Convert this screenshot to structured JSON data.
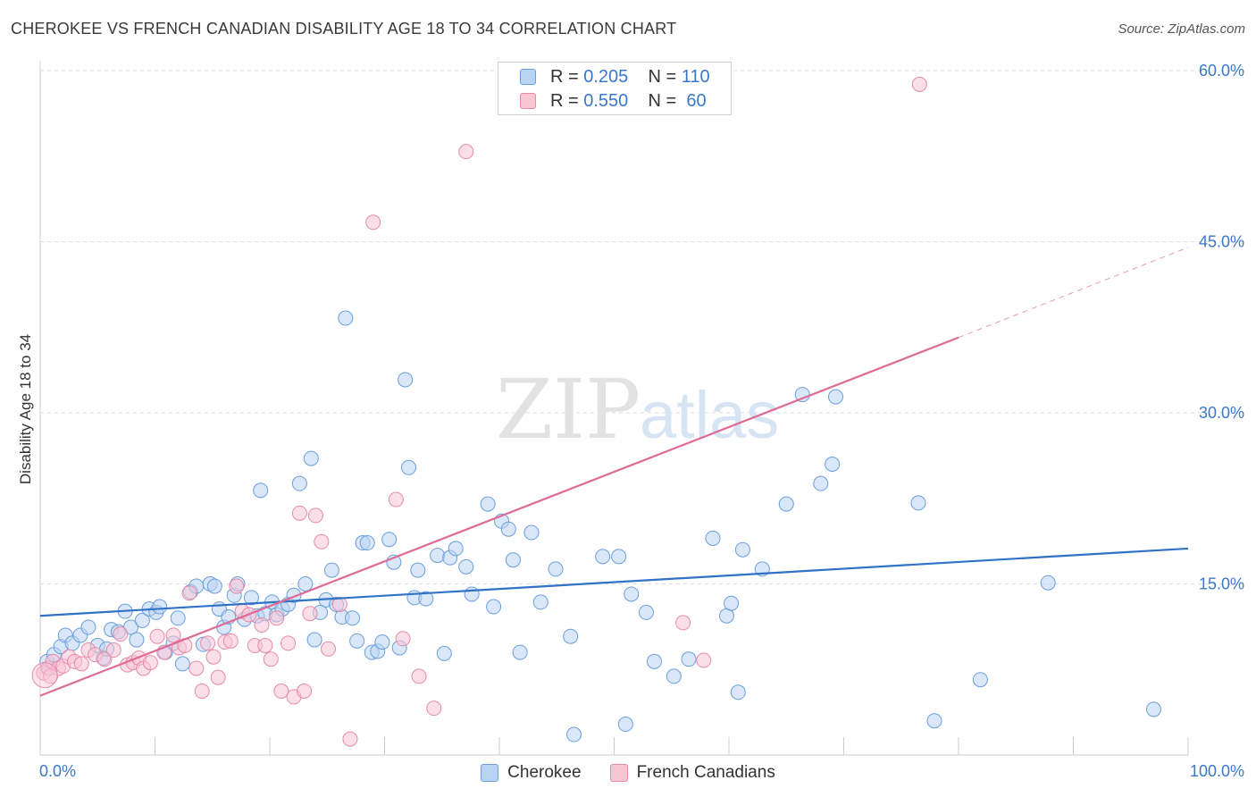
{
  "header": {
    "title": "CHEROKEE VS FRENCH CANADIAN DISABILITY AGE 18 TO 34 CORRELATION CHART",
    "source": "Source: ZipAtlas.com"
  },
  "legend": {
    "rows": [
      {
        "r_label": "R =",
        "r_value": "0.205",
        "n_label": "N =",
        "n_value": "110"
      },
      {
        "r_label": "R =",
        "r_value": "0.550",
        "n_label": "N =",
        "n_value": "60"
      }
    ]
  },
  "bottom_legend": [
    "Cherokee",
    "French Canadians"
  ],
  "colors": {
    "cherokee_fill": "#b9d3f3",
    "cherokee_stroke": "#6a9fdc",
    "cherokee_line": "#2f72c8",
    "french_fill": "#f8c5d5",
    "french_stroke": "#e68aa8",
    "french_line": "#e06a96",
    "axis_text": "#3a78c9",
    "grid": "#dddddd"
  },
  "chart_data": {
    "type": "scatter",
    "title": "CHEROKEE VS FRENCH CANADIAN DISABILITY AGE 18 TO 34 CORRELATION CHART",
    "xlabel": "",
    "ylabel": "Disability Age 18 to 34",
    "xlim": [
      0,
      100
    ],
    "ylim": [
      0,
      60
    ],
    "x_tick_labels": [
      "0.0%",
      "100.0%"
    ],
    "y_ticks": [
      15,
      30,
      45,
      60
    ],
    "y_tick_labels": [
      "15.0%",
      "30.0%",
      "45.0%",
      "60.0%"
    ],
    "watermark": "ZIPatlas",
    "grid": true,
    "legend_position": "top-center",
    "series": [
      {
        "name": "Cherokee",
        "r": 0.205,
        "n": 110,
        "trend": {
          "x0": 0,
          "y0": 12.2,
          "x1": 100,
          "y1": 18.1
        },
        "points": [
          [
            0.6,
            8.2
          ],
          [
            1.2,
            8.8
          ],
          [
            1.8,
            9.5
          ],
          [
            2.2,
            10.5
          ],
          [
            2.8,
            9.8
          ],
          [
            3.5,
            10.5
          ],
          [
            4.2,
            11.2
          ],
          [
            5.0,
            9.6
          ],
          [
            5.5,
            8.5
          ],
          [
            6.2,
            11.0
          ],
          [
            6.8,
            10.8
          ],
          [
            7.4,
            12.6
          ],
          [
            7.9,
            11.2
          ],
          [
            8.4,
            10.1
          ],
          [
            8.9,
            11.8
          ],
          [
            9.5,
            12.8
          ],
          [
            10.1,
            12.5
          ],
          [
            10.4,
            13.0
          ],
          [
            10.9,
            9.0
          ],
          [
            11.6,
            9.8
          ],
          [
            12.0,
            12.0
          ],
          [
            12.4,
            8.0
          ],
          [
            13.1,
            14.3
          ],
          [
            13.6,
            14.8
          ],
          [
            14.2,
            9.7
          ],
          [
            14.8,
            15.0
          ],
          [
            15.2,
            14.8
          ],
          [
            15.6,
            12.8
          ],
          [
            16.0,
            11.2
          ],
          [
            16.4,
            12.1
          ],
          [
            16.9,
            14.0
          ],
          [
            17.2,
            15.0
          ],
          [
            17.8,
            11.9
          ],
          [
            18.4,
            13.8
          ],
          [
            18.9,
            12.2
          ],
          [
            19.2,
            23.2
          ],
          [
            19.6,
            12.4
          ],
          [
            20.2,
            13.4
          ],
          [
            20.6,
            12.3
          ],
          [
            21.1,
            12.8
          ],
          [
            21.6,
            13.2
          ],
          [
            22.1,
            14.0
          ],
          [
            22.6,
            23.8
          ],
          [
            23.1,
            15.0
          ],
          [
            23.6,
            26.0
          ],
          [
            23.9,
            10.1
          ],
          [
            24.4,
            12.5
          ],
          [
            24.9,
            13.6
          ],
          [
            25.4,
            16.2
          ],
          [
            25.8,
            13.2
          ],
          [
            26.3,
            12.1
          ],
          [
            26.6,
            38.3
          ],
          [
            27.2,
            12.0
          ],
          [
            27.6,
            10.0
          ],
          [
            28.1,
            18.6
          ],
          [
            28.5,
            18.6
          ],
          [
            28.9,
            9.0
          ],
          [
            29.4,
            9.1
          ],
          [
            29.8,
            9.9
          ],
          [
            30.4,
            18.9
          ],
          [
            30.8,
            16.9
          ],
          [
            31.3,
            9.4
          ],
          [
            31.8,
            32.9
          ],
          [
            32.1,
            25.2
          ],
          [
            32.6,
            13.8
          ],
          [
            32.9,
            16.2
          ],
          [
            33.6,
            13.7
          ],
          [
            34.6,
            17.5
          ],
          [
            35.2,
            8.9
          ],
          [
            35.7,
            17.3
          ],
          [
            36.2,
            18.1
          ],
          [
            37.1,
            16.5
          ],
          [
            37.6,
            14.1
          ],
          [
            39.0,
            22.0
          ],
          [
            39.5,
            13.0
          ],
          [
            40.2,
            20.5
          ],
          [
            40.8,
            19.8
          ],
          [
            41.2,
            17.1
          ],
          [
            41.8,
            9.0
          ],
          [
            42.8,
            19.5
          ],
          [
            43.6,
            13.4
          ],
          [
            44.9,
            16.3
          ],
          [
            46.2,
            10.4
          ],
          [
            46.5,
            1.8
          ],
          [
            49.0,
            17.4
          ],
          [
            50.4,
            17.4
          ],
          [
            51.0,
            2.7
          ],
          [
            51.5,
            14.1
          ],
          [
            52.8,
            12.5
          ],
          [
            53.5,
            8.2
          ],
          [
            55.2,
            6.9
          ],
          [
            56.5,
            8.4
          ],
          [
            58.6,
            19.0
          ],
          [
            59.8,
            12.2
          ],
          [
            60.2,
            13.3
          ],
          [
            60.8,
            5.5
          ],
          [
            61.2,
            18.0
          ],
          [
            62.9,
            16.3
          ],
          [
            65.0,
            22.0
          ],
          [
            66.4,
            31.6
          ],
          [
            68.0,
            23.8
          ],
          [
            69.0,
            25.5
          ],
          [
            69.3,
            31.4
          ],
          [
            76.5,
            22.1
          ],
          [
            77.9,
            3.0
          ],
          [
            81.9,
            6.6
          ],
          [
            87.8,
            15.1
          ],
          [
            97.0,
            4.0
          ],
          [
            5.8,
            9.3
          ],
          [
            0.8,
            7.6
          ]
        ]
      },
      {
        "name": "French Canadians",
        "r": 0.55,
        "n": 60,
        "trend": {
          "x0": 0,
          "y0": 5.2,
          "x1": 80,
          "y1": 36.6
        },
        "trend_ext": {
          "x0": 80,
          "y0": 36.6,
          "x1": 100,
          "y1": 44.5
        },
        "points": [
          [
            0.3,
            7.2
          ],
          [
            0.7,
            7.6
          ],
          [
            1.1,
            8.2
          ],
          [
            1.6,
            7.6
          ],
          [
            2.0,
            7.8
          ],
          [
            2.5,
            8.6
          ],
          [
            3.0,
            8.2
          ],
          [
            3.6,
            8.0
          ],
          [
            4.2,
            9.2
          ],
          [
            4.8,
            8.8
          ],
          [
            5.6,
            8.4
          ],
          [
            6.4,
            9.2
          ],
          [
            7.0,
            10.6
          ],
          [
            7.6,
            7.9
          ],
          [
            8.1,
            8.1
          ],
          [
            8.6,
            8.5
          ],
          [
            9.0,
            7.6
          ],
          [
            9.6,
            8.1
          ],
          [
            10.2,
            10.4
          ],
          [
            10.8,
            9.0
          ],
          [
            11.6,
            10.5
          ],
          [
            12.1,
            9.4
          ],
          [
            12.6,
            9.6
          ],
          [
            13.0,
            14.2
          ],
          [
            13.6,
            7.6
          ],
          [
            14.1,
            5.6
          ],
          [
            14.6,
            9.8
          ],
          [
            15.1,
            8.6
          ],
          [
            15.5,
            6.8
          ],
          [
            16.1,
            9.9
          ],
          [
            16.6,
            10.0
          ],
          [
            17.1,
            14.8
          ],
          [
            17.6,
            12.6
          ],
          [
            18.2,
            12.3
          ],
          [
            18.7,
            9.6
          ],
          [
            19.3,
            11.4
          ],
          [
            19.6,
            9.6
          ],
          [
            20.1,
            8.4
          ],
          [
            20.6,
            12.0
          ],
          [
            21.0,
            5.6
          ],
          [
            21.6,
            9.8
          ],
          [
            22.1,
            5.1
          ],
          [
            22.6,
            21.2
          ],
          [
            23.0,
            5.6
          ],
          [
            23.5,
            12.4
          ],
          [
            24.0,
            21.0
          ],
          [
            24.5,
            18.7
          ],
          [
            25.1,
            9.3
          ],
          [
            26.1,
            13.2
          ],
          [
            27.0,
            1.4
          ],
          [
            29.0,
            46.7
          ],
          [
            31.0,
            22.4
          ],
          [
            31.6,
            10.2
          ],
          [
            33.0,
            6.9
          ],
          [
            34.3,
            4.1
          ],
          [
            37.1,
            52.9
          ],
          [
            56.0,
            11.6
          ],
          [
            57.8,
            8.3
          ],
          [
            76.6,
            58.8
          ],
          [
            0.9,
            6.9
          ]
        ]
      }
    ]
  }
}
